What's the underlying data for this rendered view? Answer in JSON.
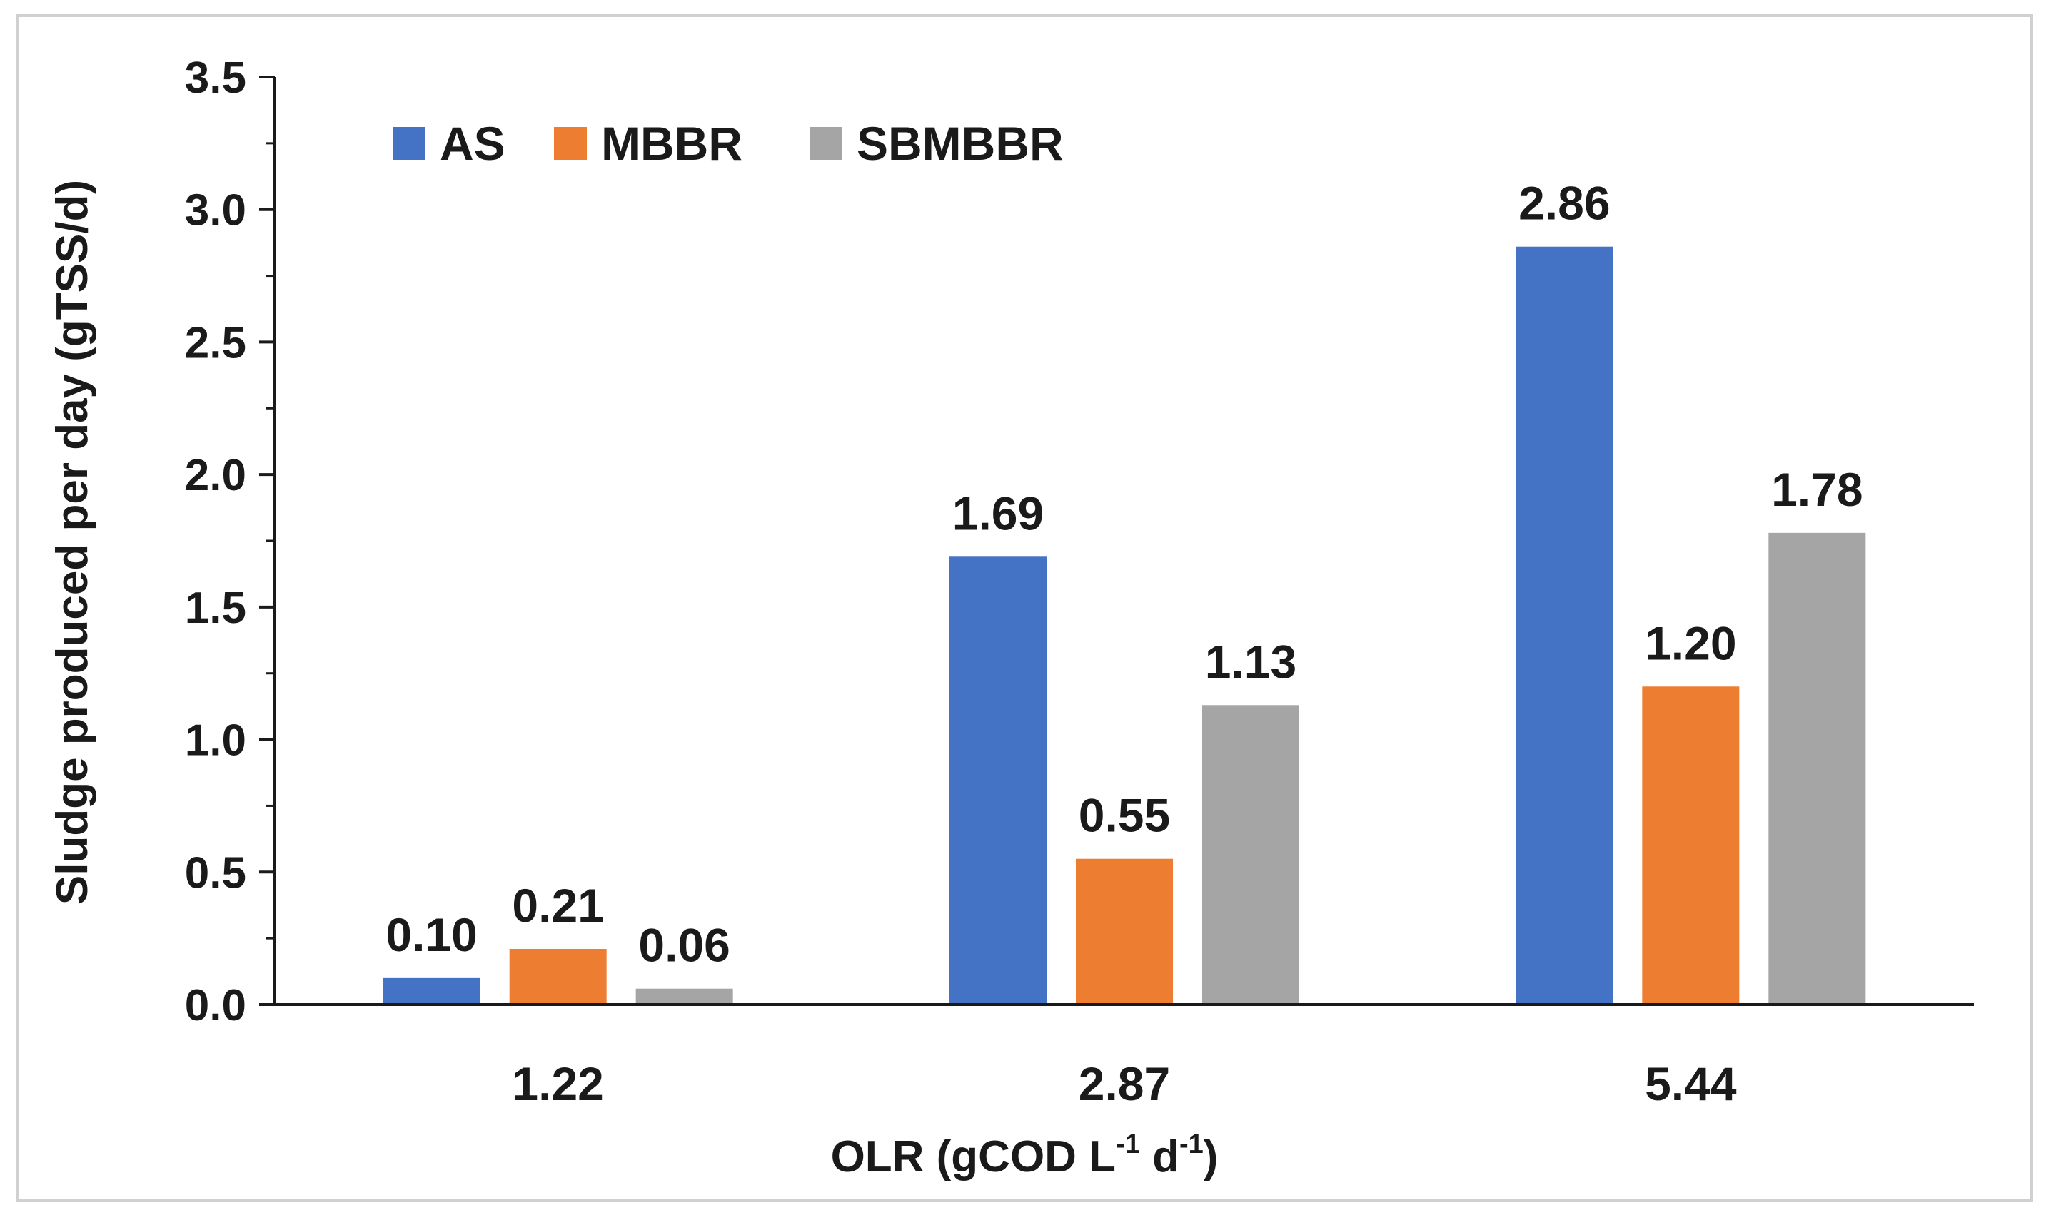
{
  "chart_data": {
    "type": "bar",
    "categories": [
      "1.22",
      "2.87",
      "5.44"
    ],
    "series": [
      {
        "name": "AS",
        "color": "#4472C4",
        "values": [
          0.1,
          1.69,
          2.86
        ],
        "labels": [
          "0.10",
          "1.69",
          "2.86"
        ]
      },
      {
        "name": "MBBR",
        "color": "#ED7D31",
        "values": [
          0.21,
          0.55,
          1.2
        ],
        "labels": [
          "0.21",
          "0.55",
          "1.20"
        ]
      },
      {
        "name": "SBMBBR",
        "color": "#A5A5A5",
        "values": [
          0.06,
          1.13,
          1.78
        ],
        "labels": [
          "0.06",
          "1.13",
          "1.78"
        ]
      }
    ],
    "ylim": [
      0,
      3.5
    ],
    "yticks": [
      "0.0",
      "0.5",
      "1.0",
      "1.5",
      "2.0",
      "2.5",
      "3.0",
      "3.5"
    ],
    "ylabel": "Sludge produced per day (gTSS/d)",
    "xlabel": {
      "main": "OLR (gCOD L",
      "sup1": "-1",
      "mid": " d",
      "sup2": "-1",
      "end": ")"
    },
    "legend_position": "top-left",
    "grid": false
  }
}
